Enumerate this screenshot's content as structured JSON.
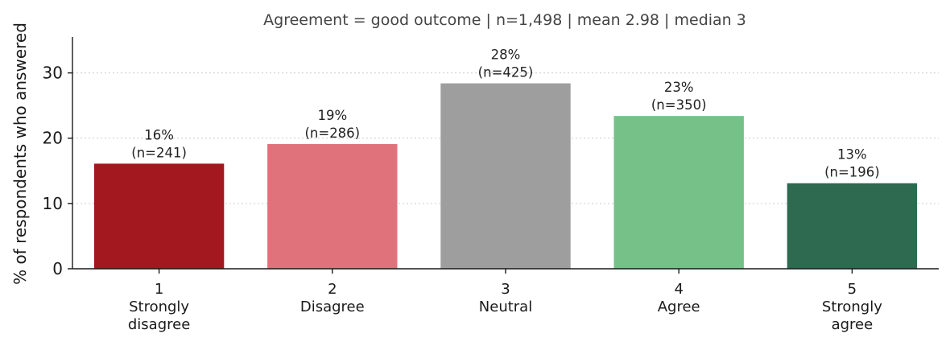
{
  "chart_data": {
    "type": "bar",
    "title": "Agreement = good outcome   |   n=1,498   |   mean 2.98   |   median 3",
    "ylabel": "% of respondents who answered",
    "xlabel": "",
    "ylim": [
      0,
      35.5
    ],
    "yticks": [
      0,
      10,
      20,
      30
    ],
    "grid": "horizontal dotted",
    "categories": [
      {
        "code": "1",
        "label": [
          "Strongly",
          "disagree"
        ]
      },
      {
        "code": "2",
        "label": [
          "Disagree"
        ]
      },
      {
        "code": "3",
        "label": [
          "Neutral"
        ]
      },
      {
        "code": "4",
        "label": [
          "Agree"
        ]
      },
      {
        "code": "5",
        "label": [
          "Strongly",
          "agree"
        ]
      }
    ],
    "values": [
      16.1,
      19.1,
      28.4,
      23.4,
      13.1
    ],
    "counts": [
      241,
      286,
      425,
      350,
      196
    ],
    "data_labels": [
      [
        "16%",
        "(n=241)"
      ],
      [
        "19%",
        "(n=286)"
      ],
      [
        "28%",
        "(n=425)"
      ],
      [
        "23%",
        "(n=350)"
      ],
      [
        "13%",
        "(n=196)"
      ]
    ],
    "colors": [
      "#a3171e",
      "#e0727c",
      "#9e9e9e",
      "#75c188",
      "#2d6a4f"
    ]
  }
}
